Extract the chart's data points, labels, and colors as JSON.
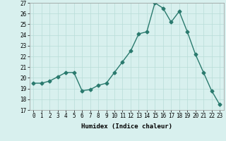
{
  "x": [
    0,
    1,
    2,
    3,
    4,
    5,
    6,
    7,
    8,
    9,
    10,
    11,
    12,
    13,
    14,
    15,
    16,
    17,
    18,
    19,
    20,
    21,
    22,
    23
  ],
  "y": [
    19.5,
    19.5,
    19.7,
    20.1,
    20.5,
    20.5,
    18.8,
    18.9,
    19.3,
    19.5,
    20.5,
    21.5,
    22.5,
    24.1,
    24.3,
    27.0,
    26.5,
    25.2,
    26.2,
    24.3,
    22.2,
    20.5,
    18.8,
    17.5
  ],
  "ylim": [
    17,
    27
  ],
  "yticks": [
    17,
    18,
    19,
    20,
    21,
    22,
    23,
    24,
    25,
    26,
    27
  ],
  "xlabel": "Humidex (Indice chaleur)",
  "line_color": "#2a7a6e",
  "marker": "D",
  "marker_size": 2.5,
  "bg_color": "#d8f0ee",
  "grid_color": "#b8ddd8",
  "xlabel_fontsize": 6.5,
  "tick_fontsize": 5.5,
  "linewidth": 1.0
}
